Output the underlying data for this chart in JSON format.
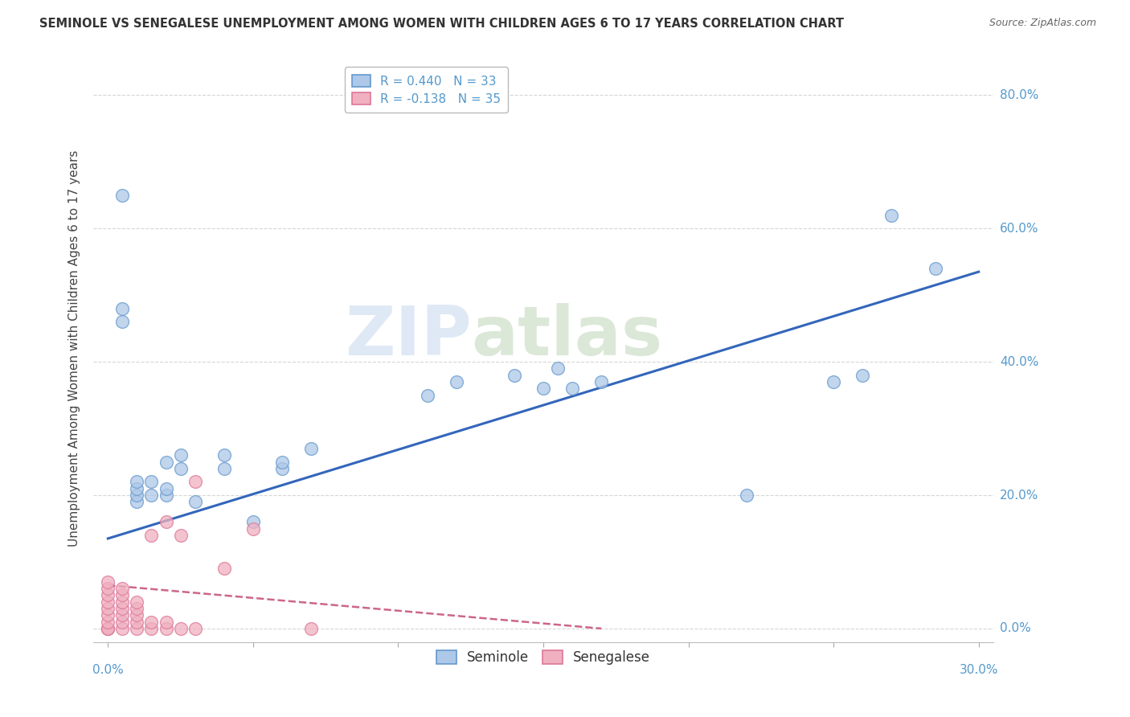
{
  "title": "SEMINOLE VS SENEGALESE UNEMPLOYMENT AMONG WOMEN WITH CHILDREN AGES 6 TO 17 YEARS CORRELATION CHART",
  "source": "Source: ZipAtlas.com",
  "xlabel_bottom_left": "0.0%",
  "xlabel_bottom_right": "30.0%",
  "ylabel": "Unemployment Among Women with Children Ages 6 to 17 years",
  "ytick_labels": [
    "80.0%",
    "60.0%",
    "40.0%",
    "20.0%",
    "0.0%"
  ],
  "ytick_values": [
    0.8,
    0.6,
    0.4,
    0.2,
    0.0
  ],
  "xlim": [
    -0.005,
    0.305
  ],
  "ylim": [
    -0.02,
    0.86
  ],
  "legend1_label": "R = 0.440   N = 33",
  "legend2_label": "R = -0.138   N = 35",
  "legend_bottom_label1": "Seminole",
  "legend_bottom_label2": "Senegalese",
  "seminole_color": "#adc8e8",
  "senegalese_color": "#f0b0c0",
  "seminole_edge_color": "#6699cc",
  "senegalese_edge_color": "#dd7799",
  "seminole_line_color": "#3366bb",
  "senegalese_line_color": "#cc6688",
  "watermark_zip": "ZIP",
  "watermark_atlas": "atlas",
  "seminole_x": [
    0.005,
    0.005,
    0.005,
    0.01,
    0.01,
    0.01,
    0.01,
    0.015,
    0.015,
    0.02,
    0.02,
    0.02,
    0.025,
    0.025,
    0.03,
    0.04,
    0.04,
    0.05,
    0.06,
    0.06,
    0.07,
    0.11,
    0.12,
    0.14,
    0.15,
    0.155,
    0.16,
    0.17,
    0.22,
    0.25,
    0.26,
    0.27,
    0.285
  ],
  "seminole_y": [
    0.46,
    0.48,
    0.65,
    0.19,
    0.2,
    0.21,
    0.22,
    0.2,
    0.22,
    0.2,
    0.21,
    0.25,
    0.24,
    0.26,
    0.19,
    0.24,
    0.26,
    0.16,
    0.24,
    0.25,
    0.27,
    0.35,
    0.37,
    0.38,
    0.36,
    0.39,
    0.36,
    0.37,
    0.2,
    0.37,
    0.38,
    0.62,
    0.54
  ],
  "senegalese_x": [
    0.0,
    0.0,
    0.0,
    0.0,
    0.0,
    0.0,
    0.0,
    0.0,
    0.0,
    0.0,
    0.005,
    0.005,
    0.005,
    0.005,
    0.005,
    0.005,
    0.005,
    0.01,
    0.01,
    0.01,
    0.01,
    0.01,
    0.015,
    0.015,
    0.015,
    0.02,
    0.02,
    0.02,
    0.025,
    0.025,
    0.03,
    0.03,
    0.04,
    0.05,
    0.07
  ],
  "senegalese_y": [
    0.0,
    0.0,
    0.0,
    0.01,
    0.02,
    0.03,
    0.04,
    0.05,
    0.06,
    0.07,
    0.0,
    0.01,
    0.02,
    0.03,
    0.04,
    0.05,
    0.06,
    0.0,
    0.01,
    0.02,
    0.03,
    0.04,
    0.0,
    0.01,
    0.14,
    0.0,
    0.01,
    0.16,
    0.0,
    0.14,
    0.0,
    0.22,
    0.09,
    0.15,
    0.0
  ],
  "seminole_trend_x": [
    0.0,
    0.3
  ],
  "seminole_trend_y": [
    0.135,
    0.535
  ],
  "senegalese_trend_x": [
    0.0,
    0.17
  ],
  "senegalese_trend_y": [
    0.065,
    0.0
  ],
  "background_color": "#ffffff",
  "grid_color": "#cccccc",
  "title_color": "#333333",
  "axis_label_color": "#5599cc"
}
